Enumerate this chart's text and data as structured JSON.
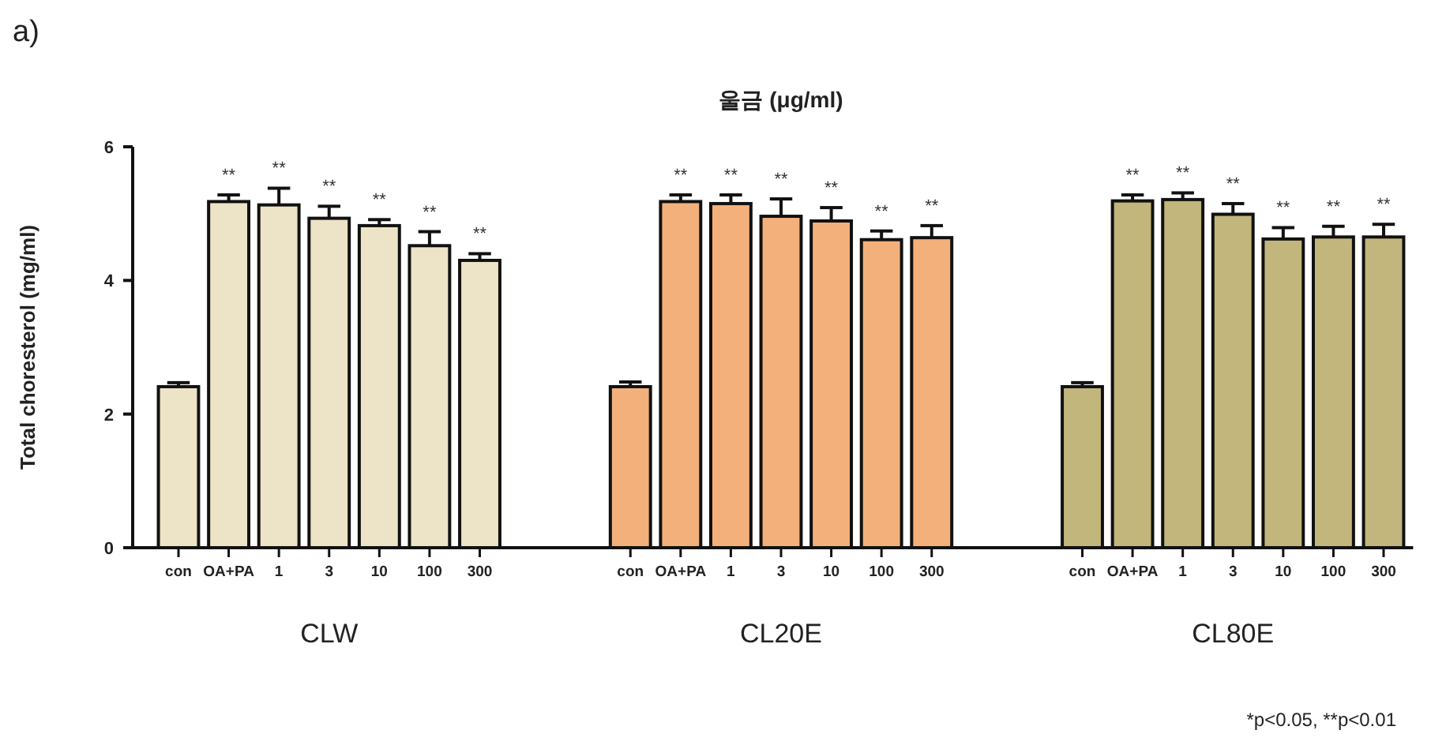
{
  "chart_data": {
    "type": "bar",
    "title": "울금 (μg/ml)",
    "ylabel": "Total choresterol (mg/ml)",
    "categories": [
      "con",
      "OA+PA",
      "1",
      "3",
      "10",
      "100",
      "300",
      null,
      null,
      "con",
      "OA+PA",
      "1",
      "3",
      "10",
      "100",
      "300",
      null,
      null,
      "con",
      "OA+PA",
      "1",
      "3",
      "10",
      "100",
      "300"
    ],
    "series": [
      {
        "name": "CLW",
        "color": "#ede3c6",
        "values": [
          2.41,
          5.18,
          5.13,
          4.93,
          4.82,
          4.52,
          4.3,
          null,
          null,
          null,
          null,
          null,
          null,
          null,
          null,
          null,
          null,
          null,
          null,
          null,
          null,
          null,
          null,
          null,
          null
        ],
        "errors": [
          0.06,
          0.1,
          0.25,
          0.18,
          0.09,
          0.21,
          0.1,
          null,
          null,
          null,
          null,
          null,
          null,
          null,
          null,
          null,
          null,
          null,
          null,
          null,
          null,
          null,
          null,
          null,
          null
        ],
        "value_labels": [
          null,
          "**",
          "**",
          "**",
          "**",
          "**",
          "**",
          null,
          null,
          null,
          null,
          null,
          null,
          null,
          null,
          null,
          null,
          null,
          null,
          null,
          null,
          null,
          null,
          null,
          null
        ]
      },
      {
        "name": "CL20E",
        "color": "#f4b07a",
        "values": [
          null,
          null,
          null,
          null,
          null,
          null,
          null,
          null,
          null,
          2.41,
          5.18,
          5.15,
          4.96,
          4.89,
          4.61,
          4.64,
          null,
          null,
          null,
          null,
          null,
          null,
          null,
          null,
          null
        ],
        "errors": [
          null,
          null,
          null,
          null,
          null,
          null,
          null,
          null,
          null,
          0.07,
          0.1,
          0.13,
          0.26,
          0.2,
          0.13,
          0.18,
          null,
          null,
          null,
          null,
          null,
          null,
          null,
          null,
          null
        ],
        "value_labels": [
          null,
          null,
          null,
          null,
          null,
          null,
          null,
          null,
          null,
          null,
          "**",
          "**",
          "**",
          "**",
          "**",
          "**",
          null,
          null,
          null,
          null,
          null,
          null,
          null,
          null,
          null
        ]
      },
      {
        "name": "CL80E",
        "color": "#c2b67d",
        "values": [
          null,
          null,
          null,
          null,
          null,
          null,
          null,
          null,
          null,
          null,
          null,
          null,
          null,
          null,
          null,
          null,
          null,
          null,
          2.41,
          5.19,
          5.21,
          4.99,
          4.62,
          4.65,
          4.65
        ],
        "errors": [
          null,
          null,
          null,
          null,
          null,
          null,
          null,
          null,
          null,
          null,
          null,
          null,
          null,
          null,
          null,
          null,
          null,
          null,
          0.06,
          0.09,
          0.1,
          0.16,
          0.17,
          0.16,
          0.19
        ],
        "value_labels": [
          null,
          null,
          null,
          null,
          null,
          null,
          null,
          null,
          null,
          null,
          null,
          null,
          null,
          null,
          null,
          null,
          null,
          null,
          null,
          "**",
          "**",
          "**",
          "**",
          "**",
          "**"
        ]
      }
    ],
    "ylim": [
      0,
      6
    ],
    "yticks": [
      0,
      2,
      4,
      6
    ],
    "grid": false,
    "annotations": [
      "a)",
      "*p<0.05, **p<0.01"
    ]
  }
}
